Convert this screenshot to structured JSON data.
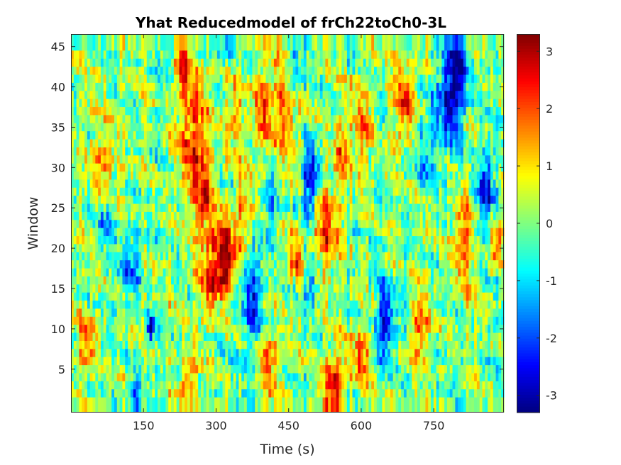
{
  "chart_data": {
    "type": "heatmap",
    "title": "Yhat Reducedmodel of frCh22toCh0-3L",
    "xlabel": "Time (s)",
    "ylabel": "Window",
    "xlim": [
      0,
      895
    ],
    "ylim": [
      1,
      46
    ],
    "x_ticks": [
      150,
      300,
      450,
      600,
      750
    ],
    "y_ticks": [
      5,
      10,
      15,
      20,
      25,
      30,
      35,
      40,
      45
    ],
    "colorbar": {
      "colormap": "jet",
      "clim": [
        -3.3,
        3.3
      ],
      "ticks": [
        -3,
        -2,
        -1,
        0,
        1,
        2,
        3
      ]
    },
    "grid": false,
    "n_windows": 45,
    "n_time_bins": 160,
    "features": [
      {
        "t": 205,
        "w": 44,
        "dt": 10,
        "dw": 2,
        "v": -1.8
      },
      {
        "t": 230,
        "w": 43,
        "dt": 18,
        "dw": 4,
        "v": 1.8
      },
      {
        "t": 255,
        "w": 34,
        "dt": 30,
        "dw": 8,
        "v": 2.1
      },
      {
        "t": 275,
        "w": 26,
        "dt": 20,
        "dw": 5,
        "v": 1.9
      },
      {
        "t": 285,
        "w": 15,
        "dt": 25,
        "dw": 4,
        "v": 1.9
      },
      {
        "t": 315,
        "w": 20,
        "dt": 30,
        "dw": 4,
        "v": 2.6
      },
      {
        "t": 320,
        "w": 17,
        "dt": 15,
        "dw": 3,
        "v": 1.7
      },
      {
        "t": 340,
        "w": 37,
        "dt": 18,
        "dw": 5,
        "v": 1.8
      },
      {
        "t": 360,
        "w": 25,
        "dt": 20,
        "dw": 5,
        "v": 1.6
      },
      {
        "t": 378,
        "w": 14,
        "dt": 18,
        "dw": 6,
        "v": -2.4
      },
      {
        "t": 395,
        "w": 37,
        "dt": 20,
        "dw": 5,
        "v": 1.7
      },
      {
        "t": 410,
        "w": 26,
        "dt": 15,
        "dw": 4,
        "v": -1.6
      },
      {
        "t": 440,
        "w": 38,
        "dt": 28,
        "dw": 7,
        "v": 2.0
      },
      {
        "t": 495,
        "w": 28,
        "dt": 18,
        "dw": 5,
        "v": -2.8
      },
      {
        "t": 498,
        "w": 16,
        "dt": 15,
        "dw": 3,
        "v": -1.8
      },
      {
        "t": 460,
        "w": 42,
        "dt": 18,
        "dw": 4,
        "v": -1.8
      },
      {
        "t": 545,
        "w": 3,
        "dt": 22,
        "dw": 4,
        "v": 2.5
      },
      {
        "t": 465,
        "w": 19,
        "dt": 12,
        "dw": 3,
        "v": 2.1
      },
      {
        "t": 410,
        "w": 6,
        "dt": 20,
        "dw": 4,
        "v": 1.9
      },
      {
        "t": 525,
        "w": 22,
        "dt": 30,
        "dw": 5,
        "v": 2.0
      },
      {
        "t": 560,
        "w": 32,
        "dt": 15,
        "dw": 4,
        "v": 1.6
      },
      {
        "t": 600,
        "w": 6,
        "dt": 22,
        "dw": 4,
        "v": 1.9
      },
      {
        "t": 652,
        "w": 11,
        "dt": 22,
        "dw": 5,
        "v": -2.6
      },
      {
        "t": 690,
        "w": 38,
        "dt": 18,
        "dw": 5,
        "v": 2.3
      },
      {
        "t": 720,
        "w": 10,
        "dt": 18,
        "dw": 4,
        "v": 1.8
      },
      {
        "t": 780,
        "w": 38,
        "dt": 25,
        "dw": 6,
        "v": -2.0
      },
      {
        "t": 800,
        "w": 42,
        "dt": 25,
        "dw": 6,
        "v": -2.2
      },
      {
        "t": 810,
        "w": 21,
        "dt": 20,
        "dw": 6,
        "v": 2.2
      },
      {
        "t": 855,
        "w": 27,
        "dt": 20,
        "dw": 5,
        "v": -2.3
      },
      {
        "t": 880,
        "w": 21,
        "dt": 15,
        "dw": 3,
        "v": 2.0
      },
      {
        "t": 120,
        "w": 18,
        "dt": 25,
        "dw": 4,
        "v": -1.6
      },
      {
        "t": 165,
        "w": 10,
        "dt": 8,
        "dw": 2,
        "v": -2.6
      },
      {
        "t": 135,
        "w": 2,
        "dt": 15,
        "dw": 2,
        "v": -1.8
      },
      {
        "t": 70,
        "w": 30,
        "dt": 25,
        "dw": 6,
        "v": 1.4
      },
      {
        "t": 30,
        "w": 8,
        "dt": 20,
        "dw": 4,
        "v": 1.4
      },
      {
        "t": 70,
        "w": 24,
        "dt": 20,
        "dw": 4,
        "v": -1.5
      },
      {
        "t": 600,
        "w": 35,
        "dt": 20,
        "dw": 6,
        "v": 1.6
      },
      {
        "t": 735,
        "w": 32,
        "dt": 20,
        "dw": 5,
        "v": -1.5
      },
      {
        "t": 245,
        "w": 4,
        "dt": 20,
        "dw": 3,
        "v": 1.6
      },
      {
        "t": 320,
        "w": 45,
        "dt": 15,
        "dw": 2,
        "v": -1.5
      }
    ]
  }
}
